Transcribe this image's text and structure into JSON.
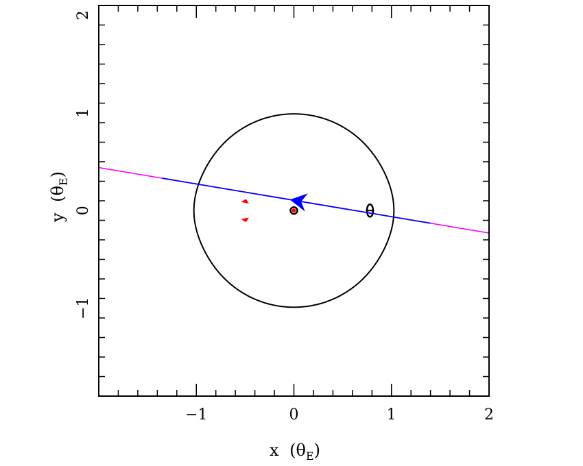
{
  "chart_data": {
    "type": "scatter",
    "title": "",
    "xlabel": "x (θ_E)",
    "ylabel": "y (θ_E)",
    "xlabel_parts": {
      "symbol": "x",
      "open": "(",
      "theta": "θ",
      "sub": "E",
      "close": ")"
    },
    "ylabel_parts": {
      "symbol": "y",
      "open": "(",
      "theta": "θ",
      "sub": "E",
      "close": ")"
    },
    "xlim": [
      -2,
      2
    ],
    "ylim": [
      -1.9,
      2.1
    ],
    "x_ticks": [
      -1,
      0,
      1,
      2
    ],
    "x_tick_labels": [
      "−1",
      "0",
      "1",
      "2"
    ],
    "y_ticks": [
      -1,
      0,
      1,
      2
    ],
    "y_tick_labels": [
      "−1",
      "0",
      "1",
      "2"
    ],
    "grid": false,
    "caustic_circle": {
      "cx": 0.0,
      "cy": 0.0,
      "rx": 1.0,
      "ry": 0.99,
      "color": "#000000"
    },
    "central_caustic": {
      "x": 0.0,
      "y": 0.0,
      "color": "#000000"
    },
    "secondary_caustic": {
      "x": 0.78,
      "y": 0.0,
      "half_height": 0.05,
      "color": "#000000"
    },
    "planetary_caustics": [
      {
        "x": -0.5,
        "y": 0.09,
        "color": "#ff0000"
      },
      {
        "x": -0.5,
        "y": -0.09,
        "color": "#ff0000"
      }
    ],
    "red_center": {
      "x": 0.0,
      "y": 0.0,
      "color": "#ff0000"
    },
    "trajectory": {
      "x": [
        -2.0,
        2.0
      ],
      "y": [
        0.44,
        -0.23
      ],
      "inner_segment_x": [
        -1.35,
        1.4
      ],
      "outer_color": "#ff00ff",
      "inner_color": "#0000ff",
      "arrow_at": [
        0.05,
        0.09
      ],
      "arrow_direction": "left",
      "arrow_color": "#0000ff"
    }
  }
}
